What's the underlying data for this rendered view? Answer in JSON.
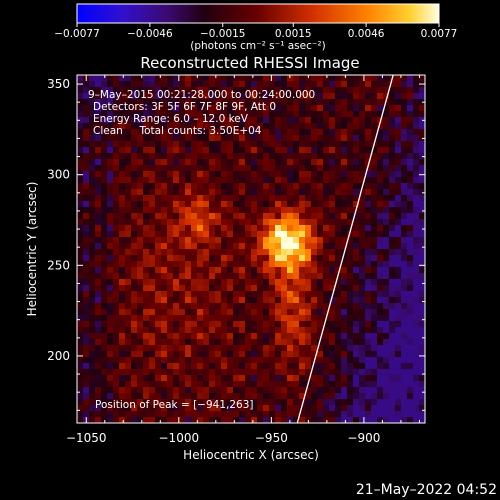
{
  "chart_data": {
    "type": "heatmap",
    "title": "Reconstructed RHESSI Image",
    "xlabel": "Heliocentric X (arcsec)",
    "ylabel": "Heliocentric Y (arcsec)",
    "xlim": [
      -1055,
      -867
    ],
    "ylim": [
      163,
      355
    ],
    "x_ticks": [
      -1050,
      -1000,
      -950,
      -900
    ],
    "x_tick_labels": [
      "−1050",
      "−1000",
      "−950",
      "−900"
    ],
    "y_ticks": [
      200,
      250,
      300,
      350
    ],
    "y_tick_labels": [
      "200",
      "250",
      "300",
      "350"
    ],
    "colorbar": {
      "min": -0.0077,
      "max": 0.0077,
      "ticks": [
        -0.0077,
        -0.0046,
        -0.0015,
        0.0015,
        0.0046,
        0.0077
      ],
      "tick_labels": [
        "−0.0077",
        "−0.0046",
        "−0.0015",
        "0.0015",
        "0.0046",
        "0.0077"
      ],
      "unit_label": "(photons cm⁻² s⁻¹ asec⁻²)",
      "colormap": "IDL color table 3 variant (blue–purple–red–yellow–white)"
    },
    "peak": {
      "x": -941,
      "y": 263
    },
    "limb": "solid white line marking the solar limb",
    "annotations": [
      "9–May–2015 00:21:28.000 to 00:24:00.000",
      "Detectors: 3F 5F 6F 7F 8F 9F, Att 0",
      "Energy Range: 6.0 – 12.0 keV",
      "Clean     Total counts: 3.50E+04",
      "Position of Peak = [−941,263]"
    ],
    "timestamp": "21–May–2022 04:52",
    "grid": false
  },
  "colors": {
    "background": "#000000",
    "text": "#ffffff",
    "limb": "#ffffff"
  }
}
